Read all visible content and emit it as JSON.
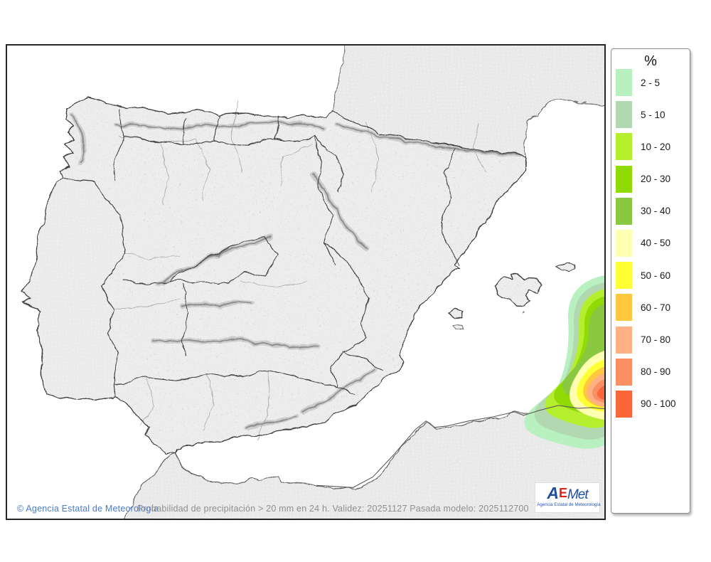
{
  "map": {
    "copyright": "© Agencia Estatal de Meteorología",
    "caption": "Probabilidad de precipitación > 20 mm en 24 h. Validez: 20251127 Pasada modelo: 2025112700",
    "sea_color": "#ffffff",
    "spain_land_color": "#ededed",
    "neighbor_land_color": "#e9e9e9",
    "coast_color": "#4d4d4d",
    "region_border_color": "#3c3c3c",
    "province_border_color": "#a6a6a6"
  },
  "logo": {
    "text_a": "A",
    "text_e": "E",
    "text_met": "Met",
    "tagline": "Agencia Estatal de Meteorología",
    "blue": "#1d4fa1",
    "red": "#d8231f"
  },
  "legend": {
    "title": "%",
    "items": [
      {
        "level": "2-5",
        "range": "2 - 5",
        "color": "#b8f0c0"
      },
      {
        "level": "5-10",
        "range": "5 - 10",
        "color": "#b2d8b2"
      },
      {
        "level": "10-20",
        "range": "10 - 20",
        "color": "#b5ee2d"
      },
      {
        "level": "20-30",
        "range": "20 - 30",
        "color": "#90db05"
      },
      {
        "level": "30-40",
        "range": "30 - 40",
        "color": "#8bc842"
      },
      {
        "level": "40-50",
        "range": "40 - 50",
        "color": "#ffffb2"
      },
      {
        "level": "50-60",
        "range": "50 - 60",
        "color": "#ffff35"
      },
      {
        "level": "60-70",
        "range": "60 - 70",
        "color": "#ffc83e"
      },
      {
        "level": "70-80",
        "range": "70 - 80",
        "color": "#ffb185"
      },
      {
        "level": "80-90",
        "range": "80 - 90",
        "color": "#f98f63"
      },
      {
        "level": "90-100",
        "range": "90 - 100",
        "color": "#fa6638"
      }
    ]
  }
}
